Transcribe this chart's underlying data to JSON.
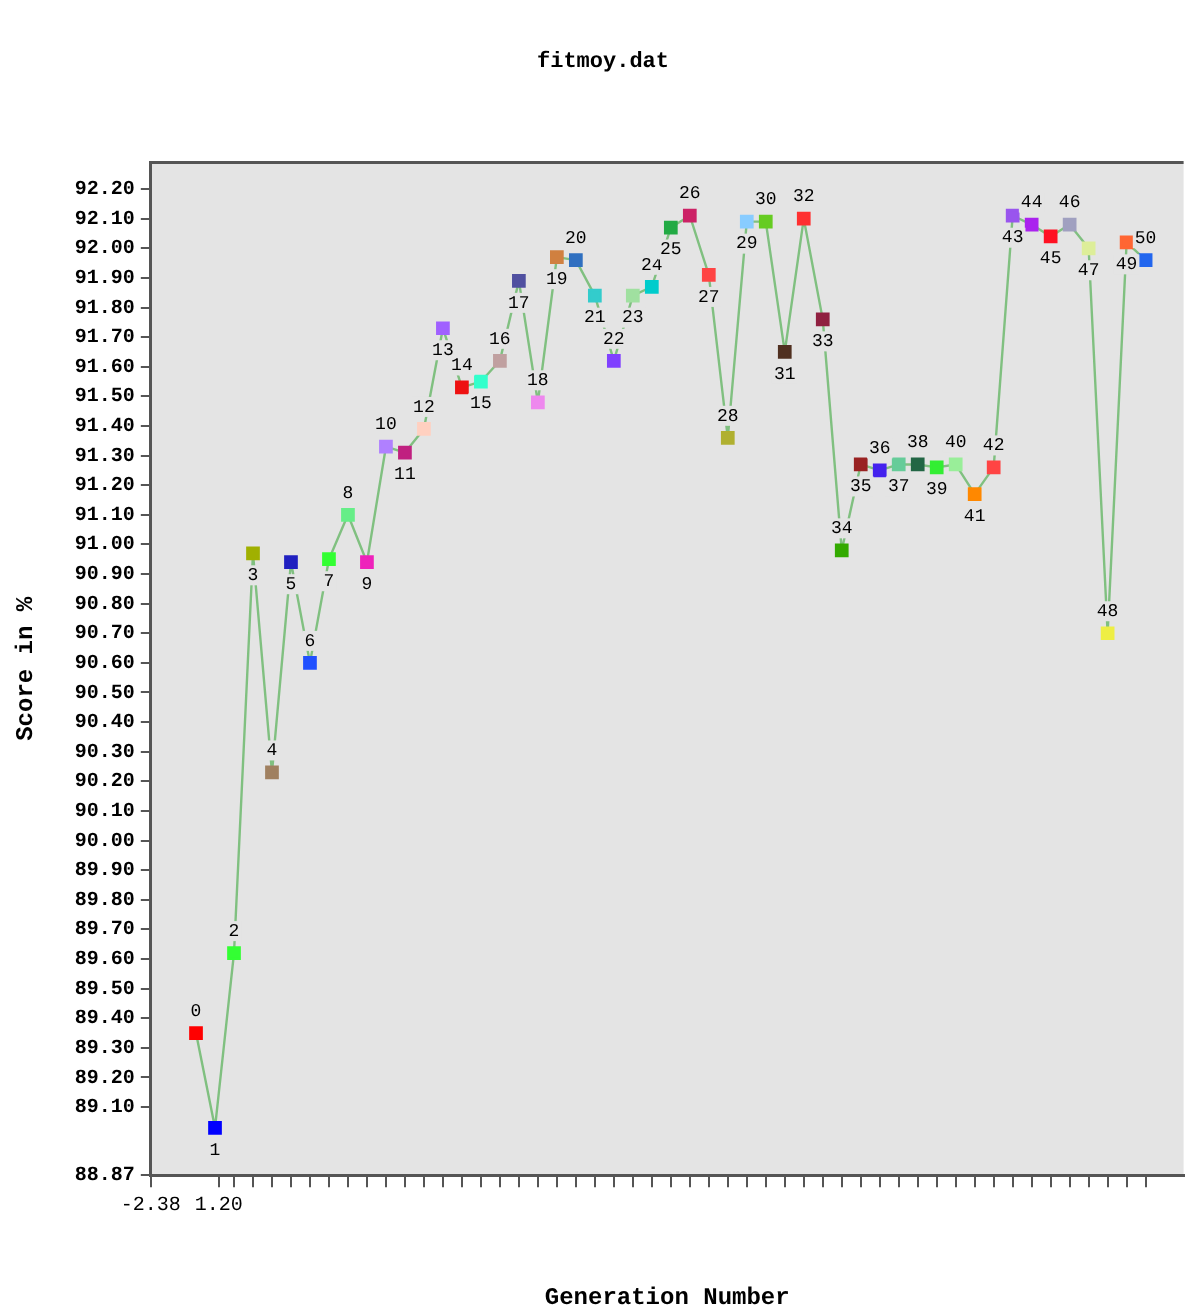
{
  "chart_data": {
    "type": "line",
    "title": "fitmoy.dat",
    "xlabel": "Generation Number",
    "ylabel": "Score in %",
    "x": [
      0,
      1,
      2,
      3,
      4,
      5,
      6,
      7,
      8,
      9,
      10,
      11,
      12,
      13,
      14,
      15,
      16,
      17,
      18,
      19,
      20,
      21,
      22,
      23,
      24,
      25,
      26,
      27,
      28,
      29,
      30,
      31,
      32,
      33,
      34,
      35,
      36,
      37,
      38,
      39,
      40,
      41,
      42,
      43,
      44,
      45,
      46,
      47,
      48,
      49,
      50
    ],
    "series": [
      {
        "color": "#80c080",
        "values": [
          89.35,
          89.03,
          89.62,
          90.97,
          90.23,
          90.94,
          90.6,
          90.95,
          91.1,
          90.94,
          91.33,
          91.31,
          91.39,
          91.73,
          91.53,
          91.55,
          91.62,
          91.89,
          91.48,
          91.97,
          91.96,
          91.84,
          91.62,
          91.84,
          91.87,
          92.07,
          92.11,
          91.91,
          91.36,
          92.09,
          92.09,
          91.65,
          92.1,
          91.76,
          90.98,
          91.27,
          91.25,
          91.27,
          91.27,
          91.26,
          91.27,
          91.17,
          91.26,
          92.11,
          92.08,
          92.04,
          92.08,
          92.0,
          90.7,
          92.02,
          91.96
        ],
        "colors": [
          "#ff0000",
          "#0000ff",
          "#33ff33",
          "#a0b000",
          "#a08060",
          "#2020c0",
          "#2050ff",
          "#33ff33",
          "#66ee88",
          "#ee22bb",
          "#b080ff",
          "#c02080",
          "#ffd0c0",
          "#a060ff",
          "#ee1111",
          "#33ffcc",
          "#c0a0a0",
          "#5050a0",
          "#ee88ee",
          "#d08040",
          "#3070c0",
          "#33cccc",
          "#8040ff",
          "#a0e0a0",
          "#00cccc",
          "#22aa44",
          "#cc2266",
          "#ff4444",
          "#b0b030",
          "#88ccff",
          "#66cc22",
          "#503020",
          "#ff3030",
          "#902040",
          "#33aa00",
          "#992222",
          "#4422ee",
          "#66cc99",
          "#226644",
          "#33ee33",
          "#99ee99",
          "#ff8800",
          "#ff4444",
          "#9955ee",
          "#aa22ee",
          "#ff1122",
          "#a0a0c0",
          "#ddee99",
          "#eeee44",
          "#ff6633",
          "#2266ee"
        ]
      }
    ],
    "marker": "square",
    "annotations": [
      {
        "text": "0",
        "x": 0,
        "y": 89.35
      },
      {
        "text": "1",
        "x": 1,
        "y": 89.03
      },
      {
        "text": "2",
        "x": 2,
        "y": 89.62
      },
      {
        "text": "3",
        "x": 3,
        "y": 90.97
      },
      {
        "text": "4",
        "x": 4,
        "y": 90.23
      },
      {
        "text": "5",
        "x": 5,
        "y": 90.94
      },
      {
        "text": "6",
        "x": 6,
        "y": 90.6
      },
      {
        "text": "7",
        "x": 7,
        "y": 90.95
      },
      {
        "text": "8",
        "x": 8,
        "y": 91.1
      },
      {
        "text": "9",
        "x": 9,
        "y": 90.94
      },
      {
        "text": "10",
        "x": 10,
        "y": 91.33
      },
      {
        "text": "11",
        "x": 11,
        "y": 91.31
      },
      {
        "text": "12",
        "x": 12,
        "y": 91.39
      },
      {
        "text": "13",
        "x": 13,
        "y": 91.73
      },
      {
        "text": "14",
        "x": 14,
        "y": 91.53
      },
      {
        "text": "15",
        "x": 15,
        "y": 91.55
      },
      {
        "text": "16",
        "x": 16,
        "y": 91.62
      },
      {
        "text": "17",
        "x": 17,
        "y": 91.89
      },
      {
        "text": "18",
        "x": 18,
        "y": 91.48
      },
      {
        "text": "19",
        "x": 19,
        "y": 91.97
      },
      {
        "text": "20",
        "x": 20,
        "y": 91.96
      },
      {
        "text": "21",
        "x": 21,
        "y": 91.84
      },
      {
        "text": "22",
        "x": 22,
        "y": 91.62
      },
      {
        "text": "23",
        "x": 23,
        "y": 91.84
      },
      {
        "text": "24",
        "x": 24,
        "y": 91.87
      },
      {
        "text": "25",
        "x": 25,
        "y": 92.07
      },
      {
        "text": "26",
        "x": 26,
        "y": 92.11
      },
      {
        "text": "27",
        "x": 27,
        "y": 91.91
      },
      {
        "text": "28",
        "x": 28,
        "y": 91.36
      },
      {
        "text": "29",
        "x": 29,
        "y": 92.09
      },
      {
        "text": "30",
        "x": 30,
        "y": 92.09
      },
      {
        "text": "31",
        "x": 31,
        "y": 91.65
      },
      {
        "text": "32",
        "x": 32,
        "y": 92.1
      },
      {
        "text": "33",
        "x": 33,
        "y": 91.76
      },
      {
        "text": "34",
        "x": 34,
        "y": 90.98
      },
      {
        "text": "35",
        "x": 35,
        "y": 91.27
      },
      {
        "text": "36",
        "x": 36,
        "y": 91.25
      },
      {
        "text": "37",
        "x": 37,
        "y": 91.27
      },
      {
        "text": "38",
        "x": 38,
        "y": 91.27
      },
      {
        "text": "39",
        "x": 39,
        "y": 91.26
      },
      {
        "text": "40",
        "x": 40,
        "y": 91.27
      },
      {
        "text": "41",
        "x": 41,
        "y": 91.17
      },
      {
        "text": "42",
        "x": 42,
        "y": 91.26
      },
      {
        "text": "43",
        "x": 43,
        "y": 92.11
      },
      {
        "text": "44",
        "x": 44,
        "y": 92.08
      },
      {
        "text": "45",
        "x": 45,
        "y": 92.04
      },
      {
        "text": "46",
        "x": 46,
        "y": 92.08
      },
      {
        "text": "47",
        "x": 47,
        "y": 92.0
      },
      {
        "text": "48",
        "x": 48,
        "y": 90.7
      },
      {
        "text": "49",
        "x": 49,
        "y": 92.02
      },
      {
        "text": "50",
        "x": 50,
        "y": 91.96
      }
    ],
    "xlim": [
      -2.38,
      52
    ],
    "xticks": [
      {
        "value": -2.38,
        "label": "-2.38"
      },
      {
        "value": 1.2,
        "label": "1.20"
      },
      {
        "value": 2,
        "label": null
      },
      {
        "value": 3,
        "label": null
      },
      {
        "value": 4,
        "label": null
      },
      {
        "value": 5,
        "label": null
      },
      {
        "value": 6,
        "label": null
      },
      {
        "value": 7,
        "label": null
      },
      {
        "value": 8,
        "label": null
      },
      {
        "value": 9,
        "label": null
      },
      {
        "value": 10,
        "label": null
      },
      {
        "value": 11,
        "label": null
      },
      {
        "value": 12,
        "label": null
      },
      {
        "value": 13,
        "label": null
      },
      {
        "value": 14,
        "label": null
      },
      {
        "value": 15,
        "label": null
      },
      {
        "value": 16,
        "label": null
      },
      {
        "value": 17,
        "label": null
      },
      {
        "value": 18,
        "label": null
      },
      {
        "value": 19,
        "label": null
      },
      {
        "value": 20,
        "label": null
      },
      {
        "value": 21,
        "label": null
      },
      {
        "value": 22,
        "label": null
      },
      {
        "value": 23,
        "label": null
      },
      {
        "value": 24,
        "label": null
      },
      {
        "value": 25,
        "label": null
      },
      {
        "value": 26,
        "label": null
      },
      {
        "value": 27,
        "label": null
      },
      {
        "value": 28,
        "label": null
      },
      {
        "value": 29,
        "label": null
      },
      {
        "value": 30,
        "label": null
      },
      {
        "value": 31,
        "label": null
      },
      {
        "value": 32,
        "label": null
      },
      {
        "value": 33,
        "label": null
      },
      {
        "value": 34,
        "label": null
      },
      {
        "value": 35,
        "label": null
      },
      {
        "value": 36,
        "label": null
      },
      {
        "value": 37,
        "label": null
      },
      {
        "value": 38,
        "label": null
      },
      {
        "value": 39,
        "label": null
      },
      {
        "value": 40,
        "label": null
      },
      {
        "value": 41,
        "label": null
      },
      {
        "value": 42,
        "label": null
      },
      {
        "value": 43,
        "label": null
      },
      {
        "value": 44,
        "label": null
      },
      {
        "value": 45,
        "label": null
      },
      {
        "value": 46,
        "label": null
      },
      {
        "value": 47,
        "label": null
      },
      {
        "value": 48,
        "label": null
      },
      {
        "value": 49,
        "label": null
      },
      {
        "value": 50,
        "label": null
      }
    ],
    "ylim": [
      88.87,
      92.29
    ],
    "yticks": [
      {
        "value": 88.87,
        "label": "88.87"
      },
      {
        "value": 89.1,
        "label": "89.10"
      },
      {
        "value": 89.2,
        "label": "89.20"
      },
      {
        "value": 89.3,
        "label": "89.30"
      },
      {
        "value": 89.4,
        "label": "89.40"
      },
      {
        "value": 89.5,
        "label": "89.50"
      },
      {
        "value": 89.6,
        "label": "89.60"
      },
      {
        "value": 89.7,
        "label": "89.70"
      },
      {
        "value": 89.8,
        "label": "89.80"
      },
      {
        "value": 89.9,
        "label": "89.90"
      },
      {
        "value": 90.0,
        "label": "90.00"
      },
      {
        "value": 90.1,
        "label": "90.10"
      },
      {
        "value": 90.2,
        "label": "90.20"
      },
      {
        "value": 90.3,
        "label": "90.30"
      },
      {
        "value": 90.4,
        "label": "90.40"
      },
      {
        "value": 90.5,
        "label": "90.50"
      },
      {
        "value": 90.6,
        "label": "90.60"
      },
      {
        "value": 90.7,
        "label": "90.70"
      },
      {
        "value": 90.8,
        "label": "90.80"
      },
      {
        "value": 90.9,
        "label": "90.90"
      },
      {
        "value": 91.0,
        "label": "91.00"
      },
      {
        "value": 91.1,
        "label": "91.10"
      },
      {
        "value": 91.2,
        "label": "91.20"
      },
      {
        "value": 91.3,
        "label": "91.30"
      },
      {
        "value": 91.4,
        "label": "91.40"
      },
      {
        "value": 91.5,
        "label": "91.50"
      },
      {
        "value": 91.6,
        "label": "91.60"
      },
      {
        "value": 91.7,
        "label": "91.70"
      },
      {
        "value": 91.8,
        "label": "91.80"
      },
      {
        "value": 91.9,
        "label": "91.90"
      },
      {
        "value": 92.0,
        "label": "92.00"
      },
      {
        "value": 92.1,
        "label": "92.10"
      },
      {
        "value": 92.2,
        "label": "92.20"
      }
    ],
    "grid": false,
    "legend": false
  }
}
